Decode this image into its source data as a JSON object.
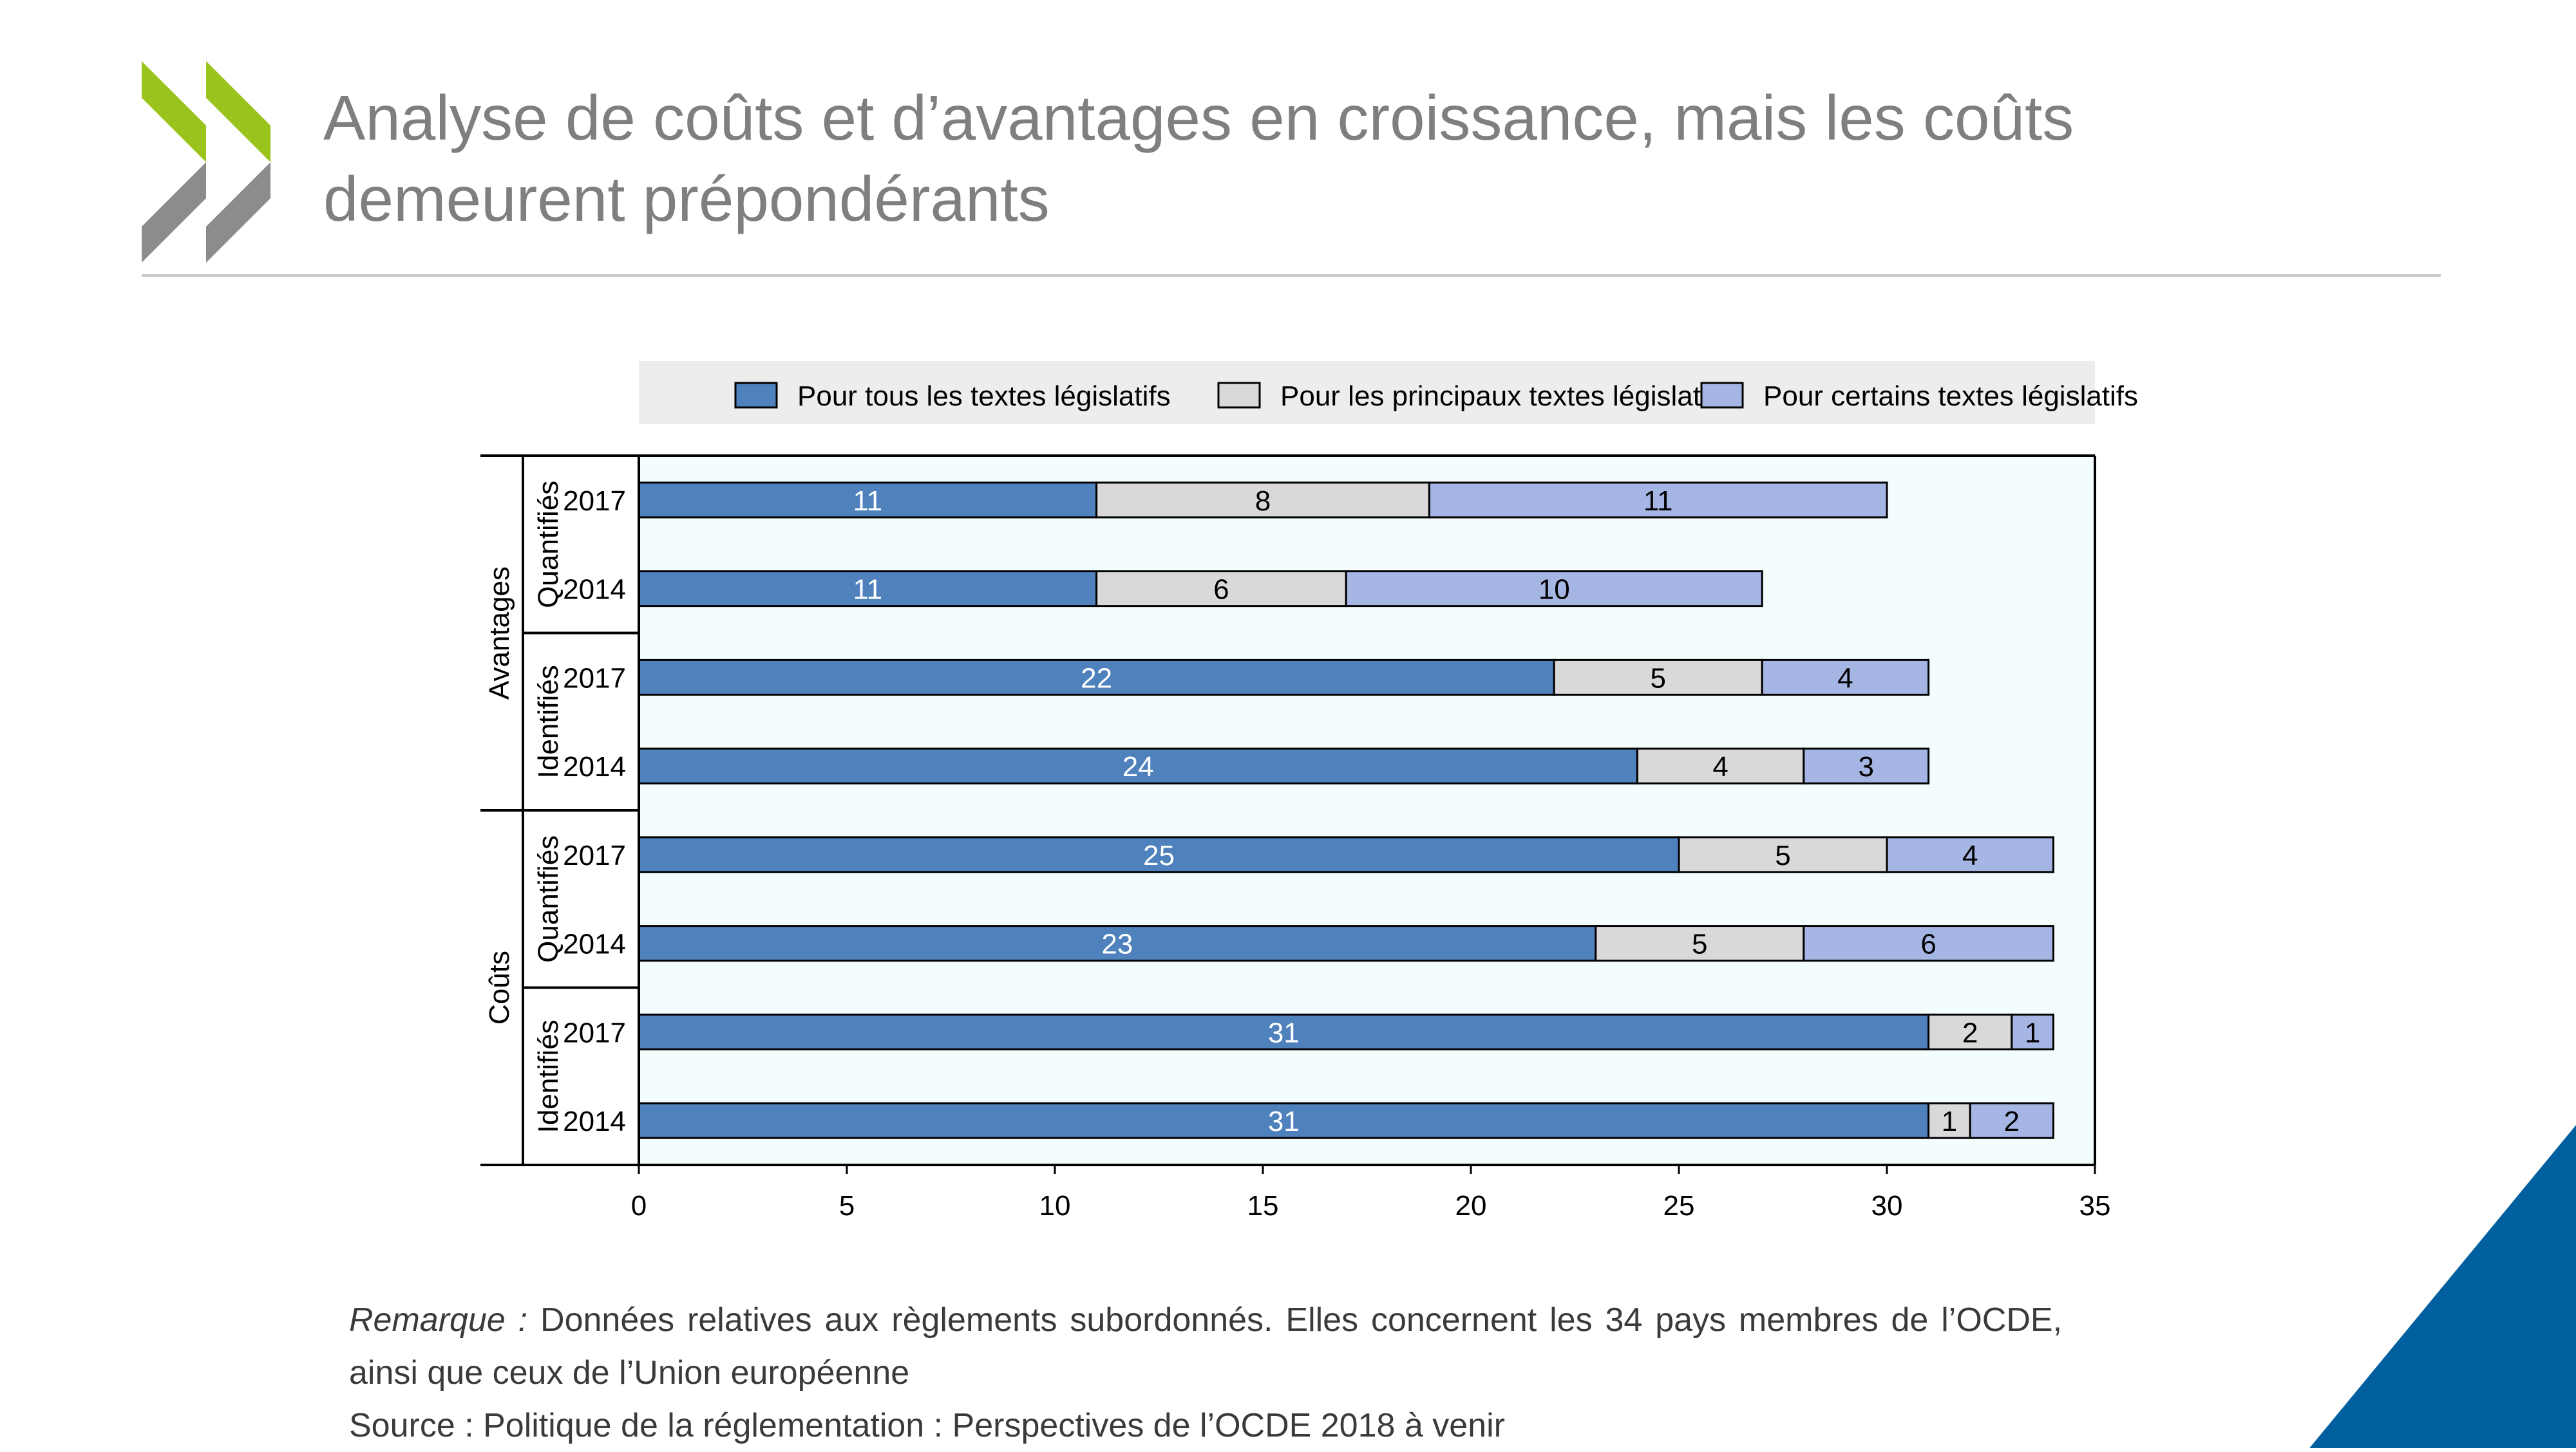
{
  "title": "Analyse de coûts et d’avantages en croissance, mais les coûts demeurent prépondérants",
  "colors": {
    "brand_green": "#9ac31c",
    "brand_grey": "#8c8c8c",
    "brand_blue": "#005f9e",
    "plot_background": "#f3fdfe",
    "legend_background": "#ededed"
  },
  "chart_data": {
    "type": "bar",
    "orientation": "horizontal",
    "stacked": true,
    "groups": [
      {
        "label": "Avantages",
        "subgroups": [
          {
            "label": "Quantifiés",
            "years": [
              "2017",
              "2014"
            ]
          },
          {
            "label": "Identifiés",
            "years": [
              "2017",
              "2014"
            ]
          }
        ]
      },
      {
        "label": "Coûts",
        "subgroups": [
          {
            "label": "Quantifiés",
            "years": [
              "2017",
              "2014"
            ]
          },
          {
            "label": "Identifiés",
            "years": [
              "2017",
              "2014"
            ]
          }
        ]
      }
    ],
    "series": [
      {
        "name": "Pour tous les textes législatifs",
        "color": "#4f81bd",
        "label_color": "#ffffff",
        "values": [
          11,
          11,
          22,
          24,
          25,
          23,
          31,
          31
        ]
      },
      {
        "name": "Pour les principaux textes législatifs",
        "color": "#d9d9d9",
        "label_color": "#000000",
        "values": [
          8,
          6,
          5,
          4,
          5,
          5,
          2,
          1
        ]
      },
      {
        "name": "Pour certains textes législatifs",
        "color": "#a6b6e4",
        "label_color": "#000000",
        "values": [
          11,
          10,
          4,
          3,
          4,
          6,
          1,
          2
        ]
      }
    ],
    "xlim": [
      0,
      35
    ],
    "xticks": [
      0,
      5,
      10,
      15,
      20,
      25,
      30,
      35
    ],
    "grid": false,
    "legend_position": "top"
  },
  "note": {
    "prefix": "Remarque :",
    "text": "Données relatives aux règlements subordonnés. Elles concernent les 34 pays membres de l’OCDE, ainsi que ceux de l’Union européenne",
    "source": "Source : Politique de la réglementation : Perspectives de l’OCDE 2018 à venir"
  }
}
